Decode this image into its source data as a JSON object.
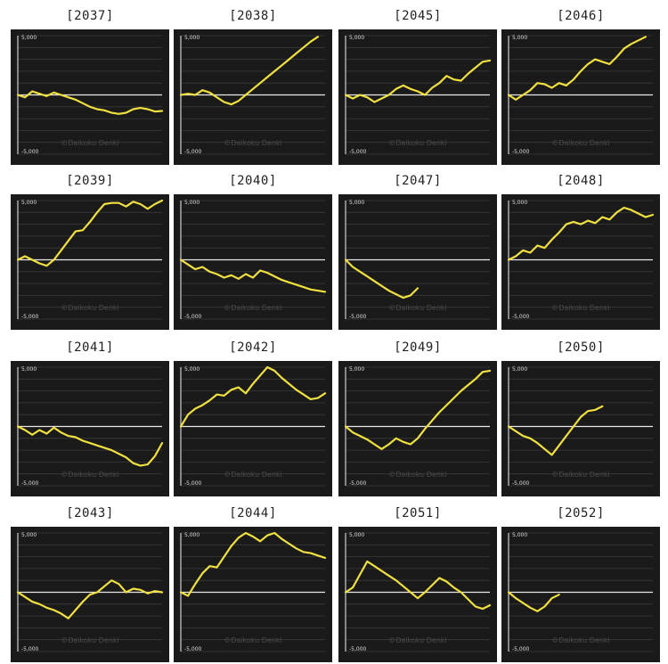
{
  "chart_data": [
    {
      "type": "line",
      "title": "[2037]",
      "y_max_label": "5,000",
      "y_min_label": "-5,000",
      "ylim": [
        -5000,
        5000
      ],
      "watermark": "©Daikoku Denki",
      "x": [
        0,
        5,
        10,
        15,
        20,
        25,
        30,
        35,
        40,
        45,
        50,
        55,
        60,
        65,
        70,
        75,
        80,
        85,
        90,
        95,
        100
      ],
      "y": [
        0,
        -200,
        300,
        100,
        -100,
        200,
        0,
        -200,
        -400,
        -700,
        -1000,
        -1200,
        -1300,
        -1500,
        -1600,
        -1500,
        -1200,
        -1100,
        -1200,
        -1400,
        -1350
      ]
    },
    {
      "type": "line",
      "title": "[2038]",
      "y_max_label": "5,000",
      "y_min_label": "-5,000",
      "ylim": [
        -5000,
        5000
      ],
      "watermark": "©Daikoku Denki",
      "x": [
        0,
        5,
        10,
        15,
        20,
        25,
        30,
        35,
        40,
        45,
        50,
        55,
        60,
        65,
        70,
        75,
        80,
        85,
        90,
        95
      ],
      "y": [
        0,
        100,
        0,
        400,
        200,
        -200,
        -600,
        -800,
        -500,
        0,
        500,
        1000,
        1500,
        2000,
        2500,
        3000,
        3500,
        4000,
        4500,
        4900
      ]
    },
    {
      "type": "line",
      "title": "[2045]",
      "y_max_label": "5,000",
      "y_min_label": "-5,000",
      "ylim": [
        -5000,
        5000
      ],
      "watermark": "©Daikoku Denki",
      "x": [
        0,
        5,
        10,
        15,
        20,
        25,
        30,
        35,
        40,
        45,
        50,
        55,
        60,
        65,
        70,
        75,
        80,
        85,
        90,
        95,
        100
      ],
      "y": [
        0,
        -300,
        0,
        -200,
        -600,
        -300,
        0,
        500,
        800,
        500,
        300,
        0,
        600,
        1000,
        1600,
        1300,
        1200,
        1800,
        2300,
        2800,
        2900
      ]
    },
    {
      "type": "line",
      "title": "[2046]",
      "y_max_label": "5,000",
      "y_min_label": "-5,000",
      "ylim": [
        -5000,
        5000
      ],
      "watermark": "©Daikoku Denki",
      "x": [
        0,
        5,
        10,
        15,
        20,
        25,
        30,
        35,
        40,
        45,
        50,
        55,
        60,
        65,
        70,
        75,
        80,
        85,
        90,
        95
      ],
      "y": [
        0,
        -400,
        0,
        400,
        1000,
        900,
        600,
        1000,
        800,
        1300,
        2000,
        2600,
        3000,
        2800,
        2600,
        3200,
        3900,
        4300,
        4600,
        4900
      ]
    },
    {
      "type": "line",
      "title": "[2039]",
      "y_max_label": "5,000",
      "y_min_label": "-5,000",
      "ylim": [
        -5000,
        5000
      ],
      "watermark": "©Daikoku Denki",
      "x": [
        0,
        5,
        10,
        15,
        20,
        25,
        30,
        35,
        40,
        45,
        50,
        55,
        60,
        65,
        70,
        75,
        80,
        85,
        90,
        95,
        100
      ],
      "y": [
        0,
        300,
        0,
        -300,
        -500,
        0,
        800,
        1600,
        2400,
        2500,
        3200,
        4000,
        4700,
        4800,
        4800,
        4500,
        4900,
        4700,
        4300,
        4700,
        5000
      ]
    },
    {
      "type": "line",
      "title": "[2040]",
      "y_max_label": "5,000",
      "y_min_label": "-5,000",
      "ylim": [
        -5000,
        5000
      ],
      "watermark": "©Daikoku Denki",
      "x": [
        0,
        5,
        10,
        15,
        20,
        25,
        30,
        35,
        40,
        45,
        50,
        55,
        60,
        65,
        70,
        75,
        80,
        85,
        90,
        95,
        100
      ],
      "y": [
        0,
        -400,
        -800,
        -600,
        -1000,
        -1200,
        -1500,
        -1300,
        -1600,
        -1200,
        -1500,
        -900,
        -1100,
        -1400,
        -1700,
        -1900,
        -2100,
        -2300,
        -2500,
        -2600,
        -2700
      ]
    },
    {
      "type": "line",
      "title": "[2047]",
      "y_max_label": "5,000",
      "y_min_label": "-5,000",
      "ylim": [
        -5000,
        5000
      ],
      "watermark": "©Daikoku Denki",
      "x": [
        0,
        5,
        10,
        15,
        20,
        25,
        30,
        35,
        40,
        45,
        50
      ],
      "y": [
        0,
        -600,
        -1000,
        -1400,
        -1800,
        -2200,
        -2600,
        -2900,
        -3200,
        -3000,
        -2400
      ]
    },
    {
      "type": "line",
      "title": "[2048]",
      "y_max_label": "5,000",
      "y_min_label": "-5,000",
      "ylim": [
        -5000,
        5000
      ],
      "watermark": "©Daikoku Denki",
      "x": [
        0,
        5,
        10,
        15,
        20,
        25,
        30,
        35,
        40,
        45,
        50,
        55,
        60,
        65,
        70,
        75,
        80,
        85,
        90,
        95,
        100
      ],
      "y": [
        0,
        300,
        800,
        600,
        1200,
        1000,
        1700,
        2300,
        3000,
        3200,
        3000,
        3300,
        3100,
        3600,
        3400,
        4000,
        4400,
        4200,
        3900,
        3600,
        3800
      ]
    },
    {
      "type": "line",
      "title": "[2041]",
      "y_max_label": "5,000",
      "y_min_label": "-5,000",
      "ylim": [
        -5000,
        5000
      ],
      "watermark": "©Daikoku Denki",
      "x": [
        0,
        5,
        10,
        15,
        20,
        25,
        30,
        35,
        40,
        45,
        50,
        55,
        60,
        65,
        70,
        75,
        80,
        85,
        90,
        95,
        100
      ],
      "y": [
        0,
        -300,
        -700,
        -300,
        -600,
        -100,
        -500,
        -800,
        -900,
        -1200,
        -1400,
        -1600,
        -1800,
        -2000,
        -2300,
        -2600,
        -3100,
        -3300,
        -3200,
        -2500,
        -1400
      ]
    },
    {
      "type": "line",
      "title": "[2042]",
      "y_max_label": "5,000",
      "y_min_label": "-5,000",
      "ylim": [
        -5000,
        5000
      ],
      "watermark": "©Daikoku Denki",
      "x": [
        0,
        5,
        10,
        15,
        20,
        25,
        30,
        35,
        40,
        45,
        50,
        55,
        60,
        65,
        70,
        75,
        80,
        85,
        90,
        95,
        100
      ],
      "y": [
        0,
        1000,
        1500,
        1800,
        2200,
        2700,
        2600,
        3100,
        3300,
        2800,
        3600,
        4300,
        5000,
        4700,
        4100,
        3600,
        3100,
        2700,
        2300,
        2400,
        2800
      ]
    },
    {
      "type": "line",
      "title": "[2049]",
      "y_max_label": "5,000",
      "y_min_label": "-5,000",
      "ylim": [
        -5000,
        5000
      ],
      "watermark": "©Daikoku Denki",
      "x": [
        0,
        5,
        10,
        15,
        20,
        25,
        30,
        35,
        40,
        45,
        50,
        55,
        60,
        65,
        70,
        75,
        80,
        85,
        90,
        95,
        100
      ],
      "y": [
        0,
        -500,
        -800,
        -1100,
        -1500,
        -1900,
        -1500,
        -1000,
        -1300,
        -1500,
        -1000,
        -200,
        500,
        1200,
        1800,
        2400,
        3000,
        3500,
        4000,
        4600,
        4700
      ]
    },
    {
      "type": "line",
      "title": "[2050]",
      "y_max_label": "5,000",
      "y_min_label": "-5,000",
      "ylim": [
        -5000,
        5000
      ],
      "watermark": "©Daikoku Denki",
      "x": [
        0,
        5,
        10,
        15,
        20,
        25,
        30,
        35,
        40,
        45,
        50,
        55,
        60,
        65
      ],
      "y": [
        0,
        -400,
        -800,
        -1000,
        -1400,
        -1900,
        -2400,
        -1600,
        -800,
        0,
        800,
        1300,
        1400,
        1700
      ]
    },
    {
      "type": "line",
      "title": "[2043]",
      "y_max_label": "5,000",
      "y_min_label": "-5,000",
      "ylim": [
        -5000,
        5000
      ],
      "watermark": "©Daikoku Denki",
      "x": [
        0,
        5,
        10,
        15,
        20,
        25,
        30,
        35,
        40,
        45,
        50,
        55,
        60,
        65,
        70,
        75,
        80,
        85,
        90,
        95,
        100
      ],
      "y": [
        0,
        -400,
        -800,
        -1000,
        -1300,
        -1500,
        -1800,
        -2200,
        -1500,
        -800,
        -200,
        0,
        500,
        1000,
        700,
        0,
        300,
        200,
        -100,
        100,
        0
      ]
    },
    {
      "type": "line",
      "title": "[2044]",
      "y_max_label": "5,000",
      "y_min_label": "-5,000",
      "ylim": [
        -5000,
        5000
      ],
      "watermark": "©Daikoku Denki",
      "x": [
        0,
        5,
        10,
        15,
        20,
        25,
        30,
        35,
        40,
        45,
        50,
        55,
        60,
        65,
        70,
        75,
        80,
        85,
        90,
        95,
        100
      ],
      "y": [
        0,
        -300,
        700,
        1600,
        2200,
        2100,
        3000,
        3900,
        4600,
        5000,
        4700,
        4300,
        4800,
        5000,
        4500,
        4100,
        3700,
        3400,
        3300,
        3100,
        2900
      ]
    },
    {
      "type": "line",
      "title": "[2051]",
      "y_max_label": "5,000",
      "y_min_label": "-5,000",
      "ylim": [
        -5000,
        5000
      ],
      "watermark": "©Daikoku Denki",
      "x": [
        0,
        5,
        10,
        15,
        20,
        25,
        30,
        35,
        40,
        45,
        50,
        55,
        60,
        65,
        70,
        75,
        80,
        85,
        90,
        95,
        100
      ],
      "y": [
        0,
        400,
        1500,
        2600,
        2200,
        1800,
        1400,
        1000,
        500,
        0,
        -500,
        0,
        600,
        1200,
        900,
        400,
        0,
        -600,
        -1200,
        -1400,
        -1100
      ]
    },
    {
      "type": "line",
      "title": "[2052]",
      "y_max_label": "5,000",
      "y_min_label": "-5,000",
      "ylim": [
        -5000,
        5000
      ],
      "watermark": "©Daikoku Denki",
      "x": [
        0,
        5,
        10,
        15,
        20,
        25,
        30,
        35
      ],
      "y": [
        0,
        -500,
        -900,
        -1300,
        -1600,
        -1200,
        -500,
        -200
      ]
    }
  ]
}
